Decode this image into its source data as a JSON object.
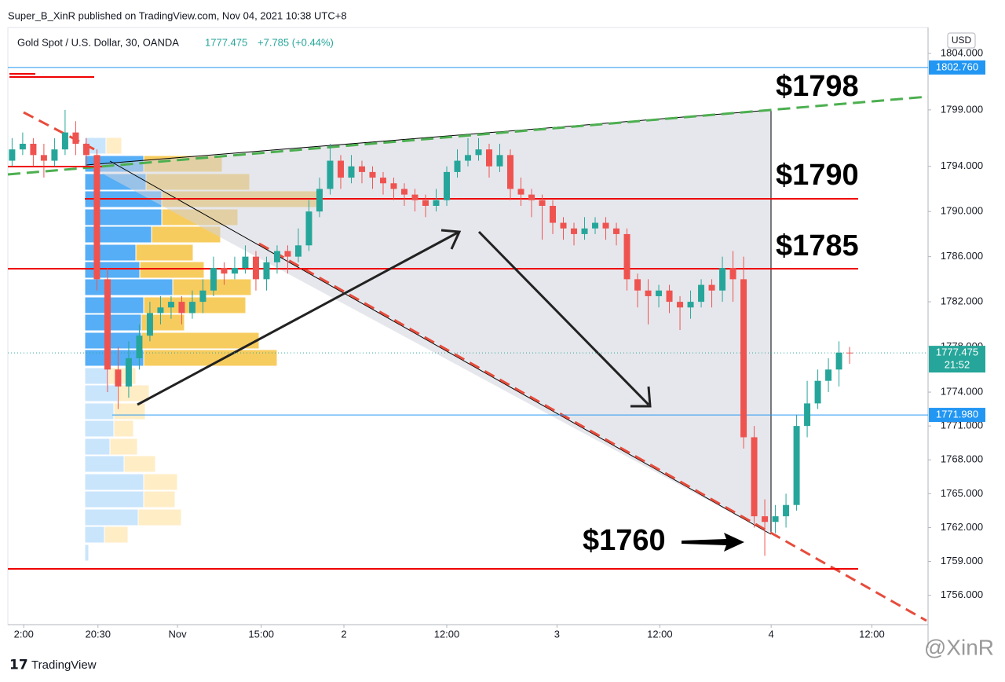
{
  "chart_data": {
    "type": "candlestick",
    "published": "Super_B_XinR published on TradingView.com, Nov 04, 2021 10:38 UTC+8",
    "symbol": "Gold Spot / U.S. Dollar, 30, OANDA",
    "last": "1777.475",
    "change": "+7.785 (+0.44%)",
    "currency": "USD",
    "annotations": [
      "$1798",
      "$1790",
      "$1785",
      "$1760"
    ],
    "brand": "TradingView",
    "watermark": "@XinR",
    "up_color": "#26a69a",
    "down_color": "#ef5350",
    "open": [
      1794.5,
      1795.5,
      1796,
      1795,
      1794.5,
      1795.5,
      1797,
      1796,
      1795,
      1784,
      1776,
      1774.5,
      1777,
      1779,
      1781,
      1781.5,
      1782,
      1781,
      1782,
      1783,
      1785,
      1784.5,
      1785,
      1786,
      1784,
      1785.5,
      1786.5,
      1786,
      1787,
      1790,
      1792,
      1794.5,
      1793,
      1794,
      1793.5,
      1793,
      1792.5,
      1792,
      1791.5,
      1791,
      1790.5,
      1791,
      1793.5,
      1794.5,
      1795,
      1795.5,
      1794,
      1795,
      1792,
      1791.5,
      1791,
      1790.5,
      1789,
      1788.5,
      1788,
      1788.5,
      1789,
      1788.5,
      1788,
      1784,
      1783,
      1782.5,
      1783,
      1782,
      1781.5,
      1782,
      1783.5,
      1783,
      1785,
      1784,
      1770,
      1763,
      1762.5,
      1763,
      1764,
      1771,
      1773,
      1775,
      1776,
      1777.5
    ],
    "high": [
      1796.5,
      1797,
      1796.5,
      1796,
      1796.5,
      1799,
      1798,
      1796.5,
      1795.5,
      1785,
      1778,
      1778.5,
      1780,
      1782,
      1782.5,
      1782.5,
      1782.5,
      1783,
      1784,
      1786,
      1785.5,
      1786,
      1787,
      1786.5,
      1786,
      1787,
      1787,
      1788.5,
      1791,
      1793,
      1796,
      1795,
      1795,
      1794.5,
      1794,
      1793.5,
      1793,
      1792.5,
      1792,
      1791.5,
      1792,
      1794,
      1795.5,
      1796.5,
      1796.5,
      1796,
      1796,
      1795.5,
      1793,
      1792,
      1791.5,
      1791,
      1789.5,
      1789,
      1789.5,
      1789.5,
      1789.5,
      1789,
      1788.5,
      1784.5,
      1784,
      1783.5,
      1783.5,
      1782.5,
      1783,
      1784,
      1784,
      1786,
      1786.5,
      1786,
      1771,
      1764.5,
      1764,
      1765,
      1772,
      1775,
      1776,
      1777,
      1778.5,
      1778
    ],
    "low": [
      1794,
      1795,
      1794,
      1793,
      1794,
      1795,
      1795,
      1794,
      1783,
      1774,
      1772.5,
      1773.5,
      1776,
      1778.5,
      1780,
      1780.5,
      1780,
      1780.5,
      1781,
      1782.5,
      1783.5,
      1784,
      1784.5,
      1783,
      1783,
      1784.5,
      1784.5,
      1785.5,
      1786.5,
      1789.5,
      1791.5,
      1792,
      1792.5,
      1792.5,
      1792,
      1791.5,
      1791,
      1790.5,
      1790,
      1789.5,
      1790,
      1790.5,
      1793,
      1794,
      1794.5,
      1793,
      1793.5,
      1791,
      1790.5,
      1789.5,
      1787.5,
      1788,
      1787.5,
      1787,
      1787.5,
      1788,
      1787.5,
      1787,
      1783,
      1781.5,
      1780,
      1781.5,
      1781,
      1779.5,
      1780.5,
      1781.5,
      1781.5,
      1782,
      1782,
      1769,
      1762,
      1759.5,
      1761.5,
      1762,
      1763.5,
      1770,
      1772.5,
      1774,
      1774.5,
      1776.5
    ],
    "close": [
      1795.5,
      1796,
      1795,
      1794.5,
      1795.5,
      1797,
      1796,
      1795,
      1784,
      1776,
      1774.5,
      1777,
      1779,
      1781,
      1781.5,
      1782,
      1781,
      1782,
      1783,
      1785,
      1784.5,
      1785,
      1786,
      1784,
      1785.5,
      1786.5,
      1786,
      1787,
      1790,
      1792,
      1794.5,
      1793,
      1794,
      1793.5,
      1793,
      1792.5,
      1792,
      1791.5,
      1791,
      1790.5,
      1791,
      1793.5,
      1794.5,
      1795,
      1795.5,
      1794,
      1795,
      1792,
      1791.5,
      1791,
      1790.5,
      1789,
      1788.5,
      1788,
      1788.5,
      1789,
      1788.5,
      1788,
      1784,
      1783,
      1782.5,
      1783,
      1782,
      1781.5,
      1782,
      1783.5,
      1783,
      1785,
      1784,
      1770,
      1763,
      1762.5,
      1763,
      1764,
      1771,
      1773,
      1775,
      1776,
      1777.5,
      1777.475
    ],
    "xlim": [
      -0.4,
      86.4
    ],
    "xticks": [
      {
        "value": 1.1,
        "label": "2:00"
      },
      {
        "value": 8.1,
        "label": "20:30"
      },
      {
        "value": 15.6,
        "label": "Nov"
      },
      {
        "value": 23.5,
        "label": "15:00"
      },
      {
        "value": 31.3,
        "label": "2"
      },
      {
        "value": 41,
        "label": "12:00"
      },
      {
        "value": 51.4,
        "label": "3"
      },
      {
        "value": 61.1,
        "label": "12:00"
      },
      {
        "value": 71.6,
        "label": "4"
      },
      {
        "value": 81.1,
        "label": "12:00"
      }
    ],
    "ylim": [
      1753.4,
      1806.3
    ],
    "yticks": [
      {
        "value": 1756,
        "label": "1756.000"
      },
      {
        "value": 1759,
        "label": "1759.000"
      },
      {
        "value": 1762,
        "label": "1762.000"
      },
      {
        "value": 1765,
        "label": "1765.000"
      },
      {
        "value": 1768,
        "label": "1768.000"
      },
      {
        "value": 1771,
        "label": "1771.000"
      },
      {
        "value": 1774,
        "label": "1774.000"
      },
      {
        "value": 1778,
        "label": "1778.000"
      },
      {
        "value": 1782,
        "label": "1782.000"
      },
      {
        "value": 1786,
        "label": "1786.000"
      },
      {
        "value": 1790,
        "label": "1790.000"
      },
      {
        "value": 1794,
        "label": "1794.000"
      },
      {
        "value": 1799,
        "label": "1799.000"
      },
      {
        "value": 1804,
        "label": "1804.000"
      }
    ],
    "price_labels": [
      {
        "value": 1802.76,
        "label": "1802.760",
        "color": "#2196f3"
      },
      {
        "value": 1777.475,
        "label": "1777.475",
        "sublabel": "21:52",
        "color": "#26a69a"
      },
      {
        "value": 1771.98,
        "label": "1771.980",
        "color": "#2196f3"
      }
    ]
  }
}
